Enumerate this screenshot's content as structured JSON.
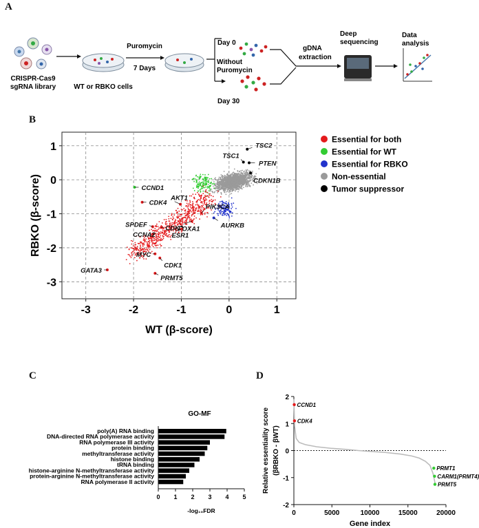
{
  "panels": {
    "a": "A",
    "b": "B",
    "c": "C",
    "d": "D"
  },
  "workflow": {
    "library": [
      "CRISPR-Cas9",
      "sgRNA library"
    ],
    "cells": "WT or RBKO cells",
    "selection": [
      "Puromycin",
      "7 Days"
    ],
    "day0": "Day 0",
    "without": [
      "Without",
      "Puromycin"
    ],
    "day30": "Day 30",
    "extraction": [
      "gDNA",
      "extraction"
    ],
    "sequencing": [
      "Deep",
      "sequencing"
    ],
    "analysis": [
      "Data",
      "analysis"
    ]
  },
  "colors": {
    "both": "#e41a1c",
    "wt": "#33cc33",
    "rbko": "#2233cc",
    "non": "#9a9a9a",
    "tumor": "#000000",
    "bars": "#000000",
    "trend": "#bbbbbb"
  },
  "chart_data": [
    {
      "type": "scatter",
      "panel": "B",
      "xlabel": "WT (β-score)",
      "ylabel": "RBKO (β-score)",
      "xlim": [
        -3.5,
        1.4
      ],
      "ylim": [
        -3.5,
        1.4
      ],
      "xticks": [
        -3,
        -2,
        -1,
        0,
        1
      ],
      "yticks": [
        1,
        0,
        -1,
        -2,
        -3
      ],
      "grid": "dashed",
      "legend_position": "right",
      "legend": [
        {
          "label": "Essential for both",
          "color": "#e41a1c"
        },
        {
          "label": "Essential for WT",
          "color": "#33cc33"
        },
        {
          "label": "Essential for RBKO",
          "color": "#2233cc"
        },
        {
          "label": "Non-essential",
          "color": "#9a9a9a"
        },
        {
          "label": "Tumor suppressor",
          "color": "#000000"
        }
      ],
      "genes": [
        {
          "name": "TSC2",
          "x": 0.38,
          "y": 0.9,
          "cls": "tumor"
        },
        {
          "name": "TSC1",
          "x": 0.3,
          "y": 0.52,
          "cls": "tumor"
        },
        {
          "name": "PTEN",
          "x": 0.42,
          "y": 0.5,
          "cls": "tumor"
        },
        {
          "name": "CDKN1B",
          "x": 0.45,
          "y": 0.2,
          "cls": "tumor"
        },
        {
          "name": "CCND1",
          "x": -1.98,
          "y": -0.22,
          "cls": "wt"
        },
        {
          "name": "CDK4",
          "x": -1.82,
          "y": -0.66,
          "cls": "both"
        },
        {
          "name": "AKT1",
          "x": -1.02,
          "y": -0.72,
          "cls": "both"
        },
        {
          "name": "PIK3CA",
          "x": -0.58,
          "y": -0.98,
          "cls": "both"
        },
        {
          "name": "AURKB",
          "x": -0.32,
          "y": -1.12,
          "cls": "rbko"
        },
        {
          "name": "FOXA1",
          "x": -0.78,
          "y": -1.22,
          "cls": "both"
        },
        {
          "name": "CDK2",
          "x": -1.42,
          "y": -1.4,
          "cls": "both"
        },
        {
          "name": "SPDEF",
          "x": -1.6,
          "y": -1.38,
          "cls": "both"
        },
        {
          "name": "ESR1",
          "x": -1.0,
          "y": -1.45,
          "cls": "both"
        },
        {
          "name": "CCNA2",
          "x": -1.6,
          "y": -1.6,
          "cls": "both"
        },
        {
          "name": "MYC",
          "x": -1.55,
          "y": -2.18,
          "cls": "both"
        },
        {
          "name": "CDK1",
          "x": -1.45,
          "y": -2.3,
          "cls": "both"
        },
        {
          "name": "GATA3",
          "x": -2.55,
          "y": -2.65,
          "cls": "both"
        },
        {
          "name": "PRMT5",
          "x": -1.55,
          "y": -2.75,
          "cls": "both"
        }
      ]
    },
    {
      "type": "bar",
      "panel": "C",
      "orientation": "horizontal",
      "title": "GO-MF",
      "xlabel": "-log₁₀FDR",
      "xlim": [
        0,
        5
      ],
      "xticks": [
        0,
        1,
        2,
        3,
        4,
        5
      ],
      "categories": [
        "poly(A) RNA binding",
        "DNA-directed RNA polymerase activity",
        "RNA polymerase III activity",
        "protein binding",
        "methyltransferase activity",
        "histone binding",
        "tRNA binding",
        "histone-arginine N-methyltransferase activity",
        "protein-arginine N-methyltransferase activity",
        "RNA polymerase II activity"
      ],
      "values": [
        3.95,
        3.85,
        3.0,
        2.85,
        2.7,
        2.4,
        2.1,
        1.8,
        1.6,
        1.45
      ]
    },
    {
      "type": "line",
      "panel": "D",
      "xlabel": "Gene index",
      "ylabel": "Relative essentiality score",
      "ylabel2": "(βRBKO - βWT)",
      "xlim": [
        0,
        20000
      ],
      "ylim": [
        -2,
        2
      ],
      "xticks": [
        0,
        5000,
        10000,
        15000,
        20000
      ],
      "yticks": [
        2,
        1,
        0,
        -1,
        -2
      ],
      "curve": [
        [
          0,
          1.9
        ],
        [
          100,
          0.9
        ],
        [
          300,
          0.45
        ],
        [
          700,
          0.3
        ],
        [
          1500,
          0.22
        ],
        [
          3000,
          0.14
        ],
        [
          5000,
          0.08
        ],
        [
          7000,
          0.04
        ],
        [
          8500,
          0.0
        ],
        [
          10000,
          -0.03
        ],
        [
          12000,
          -0.07
        ],
        [
          14000,
          -0.13
        ],
        [
          15500,
          -0.2
        ],
        [
          16500,
          -0.28
        ],
        [
          17300,
          -0.4
        ],
        [
          17900,
          -0.55
        ],
        [
          18300,
          -0.85
        ],
        [
          18600,
          -1.25
        ]
      ],
      "labels": [
        {
          "name": "CCND1",
          "x": 50,
          "y": 1.7,
          "color": "#e41a1c"
        },
        {
          "name": "CDK4",
          "x": 80,
          "y": 1.1,
          "color": "#e41a1c"
        },
        {
          "name": "PRMT1",
          "x": 18400,
          "y": -0.65,
          "color": "#33cc33"
        },
        {
          "name": "CARM1(PRMT4)",
          "x": 18500,
          "y": -0.95,
          "color": "#33cc33"
        },
        {
          "name": "PRMT5",
          "x": 18550,
          "y": -1.25,
          "color": "#33cc33"
        }
      ]
    }
  ]
}
